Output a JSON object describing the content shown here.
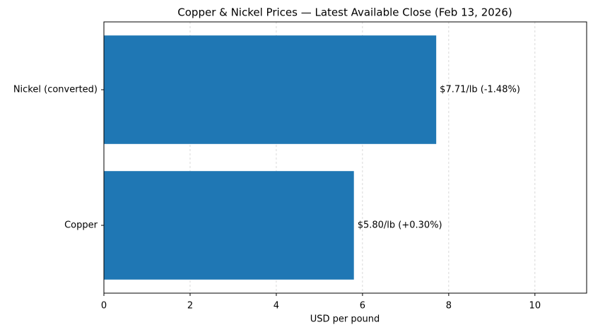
{
  "chart_data": {
    "type": "barh",
    "title": "Copper & Nickel Prices — Latest Available Close (Feb 13, 2026)",
    "xlabel": "USD per pound",
    "categories": [
      "Copper",
      "Nickel (converted)"
    ],
    "values": [
      5.8,
      7.71
    ],
    "value_labels": [
      "$5.80/lb  (+0.30%)",
      "$7.71/lb  (-1.48%)"
    ],
    "color": "#1f77b4",
    "xlim": [
      0,
      11.2
    ],
    "xticks": [
      0,
      2,
      4,
      6,
      8,
      10
    ],
    "grid": true
  }
}
